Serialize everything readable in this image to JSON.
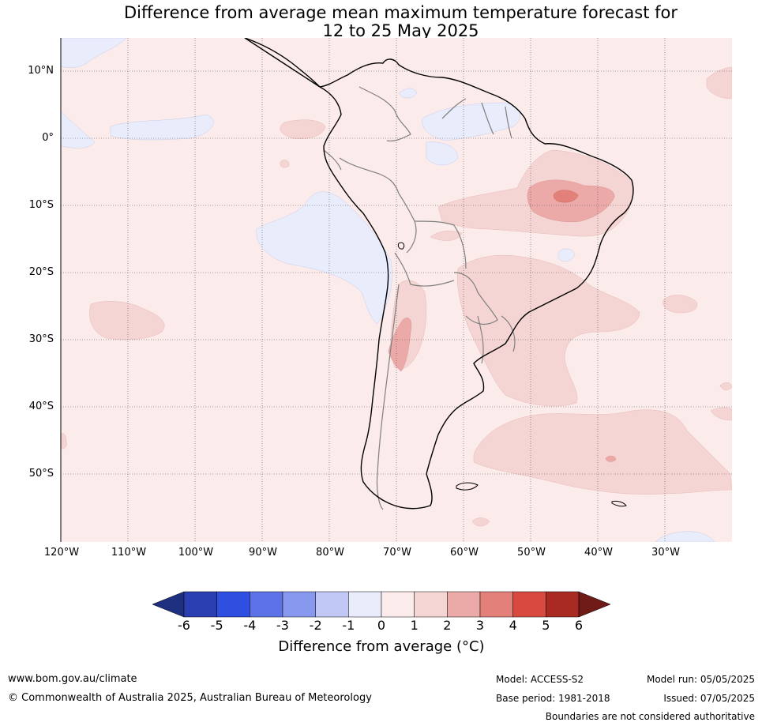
{
  "title": {
    "line1": "Difference from average mean maximum temperature forecast for",
    "line2": "12 to 25 May 2025"
  },
  "map": {
    "lat_labels": [
      "10°N",
      "0°",
      "10°S",
      "20°S",
      "30°S",
      "40°S",
      "50°S"
    ],
    "lon_labels": [
      "120°W",
      "110°W",
      "100°W",
      "90°W",
      "80°W",
      "70°W",
      "60°W",
      "50°W",
      "40°W",
      "30°W"
    ],
    "colors": {
      "ocean_neutral": "#fbebea",
      "cool_1": "#e9ecfb",
      "warm_1": "#f5d5d3",
      "warm_2": "#ebaaa7",
      "warm_3": "#e4807a",
      "coast": "#000000",
      "borders": "#808080"
    }
  },
  "colorbar": {
    "ticks": [
      "-6",
      "-5",
      "-4",
      "-3",
      "-2",
      "-1",
      "0",
      "1",
      "2",
      "3",
      "4",
      "5",
      "6"
    ],
    "colors": [
      "#1f2f7f",
      "#2a3eb1",
      "#2f4fe1",
      "#5d72e6",
      "#8898ee",
      "#c1c8f5",
      "#e9ecfb",
      "#fbebea",
      "#f5d5d3",
      "#ebaaa7",
      "#e4807a",
      "#d84a3f",
      "#a82a22",
      "#6e1a16"
    ],
    "label": "Difference from average (°C)"
  },
  "footer": {
    "website": "www.bom.gov.au/climate",
    "copyright": "© Commonwealth of Australia 2025, Australian Bureau of Meteorology",
    "model": "Model: ACCESS-S2",
    "model_run": "Model run: 05/05/2025",
    "base_period": "Base period: 1981-2018",
    "issued": "Issued: 07/05/2025",
    "disclaimer": "Boundaries are not considered authoritative"
  }
}
